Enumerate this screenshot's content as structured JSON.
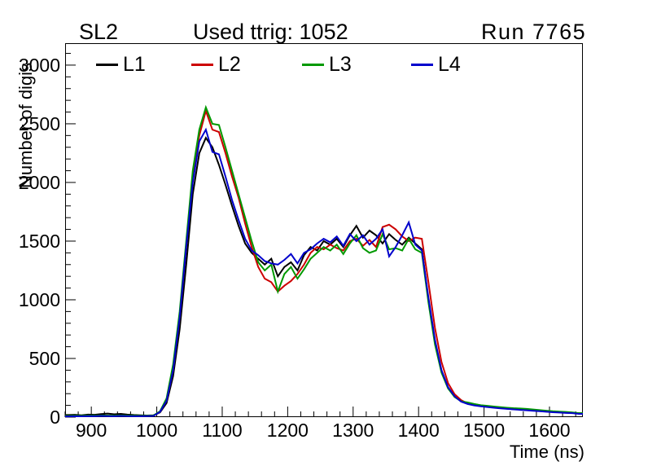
{
  "header": {
    "left_label": "SL2",
    "center_label": "Used ttrig: 1052",
    "right_label": "Run 7765"
  },
  "chart_data": {
    "type": "line",
    "title": "Used ttrig: 1052",
    "xlabel": "Time (ns)",
    "ylabel": "Number of digis",
    "xlim": [
      860,
      1651
    ],
    "ylim": [
      0,
      3187
    ],
    "grid": false,
    "legend_position": "top-inside",
    "x_major_ticks": [
      900,
      1000,
      1100,
      1200,
      1300,
      1400,
      1500,
      1600
    ],
    "x_minor_step": 20,
    "y_major_ticks": [
      0,
      500,
      1000,
      1500,
      2000,
      2500,
      3000
    ],
    "y_minor_step": 100,
    "x": [
      865,
      875,
      885,
      895,
      905,
      915,
      925,
      935,
      945,
      955,
      965,
      975,
      985,
      995,
      1005,
      1015,
      1025,
      1035,
      1045,
      1055,
      1065,
      1075,
      1085,
      1095,
      1105,
      1115,
      1125,
      1135,
      1145,
      1155,
      1165,
      1175,
      1185,
      1195,
      1205,
      1215,
      1225,
      1235,
      1245,
      1255,
      1265,
      1275,
      1285,
      1295,
      1305,
      1315,
      1325,
      1335,
      1345,
      1355,
      1365,
      1375,
      1385,
      1395,
      1405,
      1415,
      1425,
      1435,
      1445,
      1455,
      1465,
      1475,
      1485,
      1495,
      1505,
      1515,
      1525,
      1535,
      1545,
      1555,
      1565,
      1575,
      1585,
      1595,
      1605,
      1615,
      1625,
      1635,
      1645
    ],
    "series": [
      {
        "name": "L1",
        "color": "#000000",
        "values": [
          18,
          20,
          16,
          22,
          20,
          26,
          30,
          24,
          28,
          22,
          18,
          16,
          14,
          16,
          40,
          120,
          350,
          750,
          1300,
          1900,
          2250,
          2380,
          2300,
          2150,
          1980,
          1800,
          1630,
          1480,
          1400,
          1350,
          1300,
          1350,
          1200,
          1280,
          1320,
          1250,
          1380,
          1450,
          1420,
          1500,
          1470,
          1520,
          1450,
          1550,
          1630,
          1530,
          1590,
          1550,
          1480,
          1560,
          1510,
          1470,
          1530,
          1480,
          1430,
          1000,
          640,
          390,
          250,
          175,
          135,
          122,
          110,
          100,
          94,
          88,
          82,
          76,
          72,
          70,
          66,
          62,
          57,
          52,
          48,
          45,
          42,
          38,
          33
        ]
      },
      {
        "name": "L2",
        "color": "#cc0000",
        "values": [
          8,
          10,
          9,
          11,
          10,
          12,
          11,
          10,
          12,
          11,
          10,
          9,
          10,
          12,
          45,
          140,
          400,
          850,
          1450,
          2050,
          2400,
          2610,
          2450,
          2430,
          2250,
          2050,
          1870,
          1650,
          1450,
          1280,
          1180,
          1150,
          1070,
          1120,
          1160,
          1220,
          1300,
          1400,
          1450,
          1430,
          1470,
          1440,
          1420,
          1500,
          1520,
          1460,
          1510,
          1450,
          1620,
          1640,
          1600,
          1540,
          1500,
          1530,
          1520,
          1150,
          760,
          470,
          290,
          195,
          145,
          115,
          104,
          95,
          90,
          83,
          77,
          72,
          68,
          65,
          62,
          58,
          53,
          48,
          44,
          41,
          38,
          36,
          30
        ]
      },
      {
        "name": "L3",
        "color": "#009900",
        "values": [
          10,
          12,
          11,
          13,
          12,
          14,
          13,
          12,
          14,
          13,
          12,
          11,
          12,
          14,
          50,
          160,
          450,
          900,
          1500,
          2100,
          2450,
          2640,
          2500,
          2490,
          2300,
          2100,
          1900,
          1700,
          1500,
          1320,
          1250,
          1300,
          1070,
          1220,
          1280,
          1180,
          1260,
          1350,
          1400,
          1450,
          1420,
          1470,
          1390,
          1480,
          1550,
          1440,
          1400,
          1420,
          1560,
          1430,
          1440,
          1420,
          1520,
          1430,
          1400,
          980,
          620,
          380,
          245,
          172,
          135,
          125,
          112,
          102,
          96,
          90,
          85,
          80,
          76,
          74,
          70,
          65,
          60,
          55,
          50,
          47,
          44,
          40,
          34
        ]
      },
      {
        "name": "L4",
        "color": "#0000cc",
        "values": [
          6,
          8,
          7,
          9,
          8,
          10,
          9,
          8,
          10,
          9,
          8,
          8,
          9,
          10,
          45,
          140,
          400,
          850,
          1450,
          2000,
          2350,
          2450,
          2260,
          2240,
          2050,
          1850,
          1680,
          1520,
          1420,
          1380,
          1330,
          1310,
          1300,
          1340,
          1390,
          1310,
          1400,
          1430,
          1480,
          1520,
          1490,
          1540,
          1460,
          1560,
          1500,
          1550,
          1470,
          1520,
          1600,
          1370,
          1450,
          1550,
          1660,
          1470,
          1420,
          1020,
          660,
          400,
          255,
          178,
          132,
          112,
          100,
          92,
          86,
          80,
          75,
          70,
          66,
          62,
          58,
          54,
          50,
          46,
          42,
          39,
          36,
          34,
          28
        ]
      }
    ]
  }
}
